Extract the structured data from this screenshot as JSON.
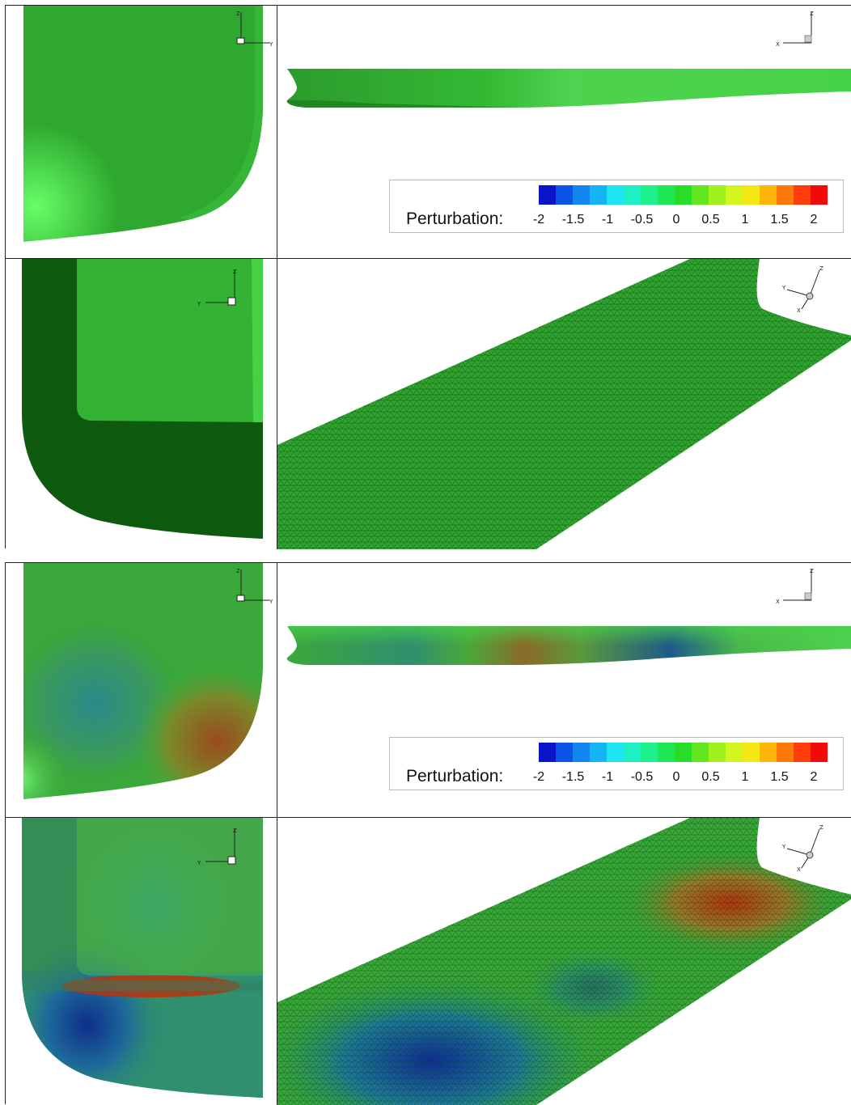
{
  "figure": {
    "legend_title": "Perturbation:",
    "legend_ticks": [
      "-2",
      "-1.5",
      "-1",
      "-0.5",
      "0",
      "0.5",
      "1",
      "1.5",
      "2"
    ],
    "legend_colors": [
      "#0a14c8",
      "#0a55e6",
      "#1486f0",
      "#14b4f5",
      "#1ee6f0",
      "#1ef0c3",
      "#1ef08c",
      "#1ee655",
      "#28dc28",
      "#64e61e",
      "#a0f01e",
      "#d2f51e",
      "#f5e614",
      "#ffb40a",
      "#ff780a",
      "#ff3c0a",
      "#f00a0a"
    ],
    "axes": {
      "front": {
        "v": "Z",
        "h": "Y"
      },
      "side": {
        "v": "Z",
        "h": "X"
      },
      "back": {
        "v": "Z",
        "h": "Y"
      },
      "iso": {
        "v": "Z",
        "a": "Y",
        "b": "X"
      }
    },
    "hull_color": "#32b432"
  }
}
